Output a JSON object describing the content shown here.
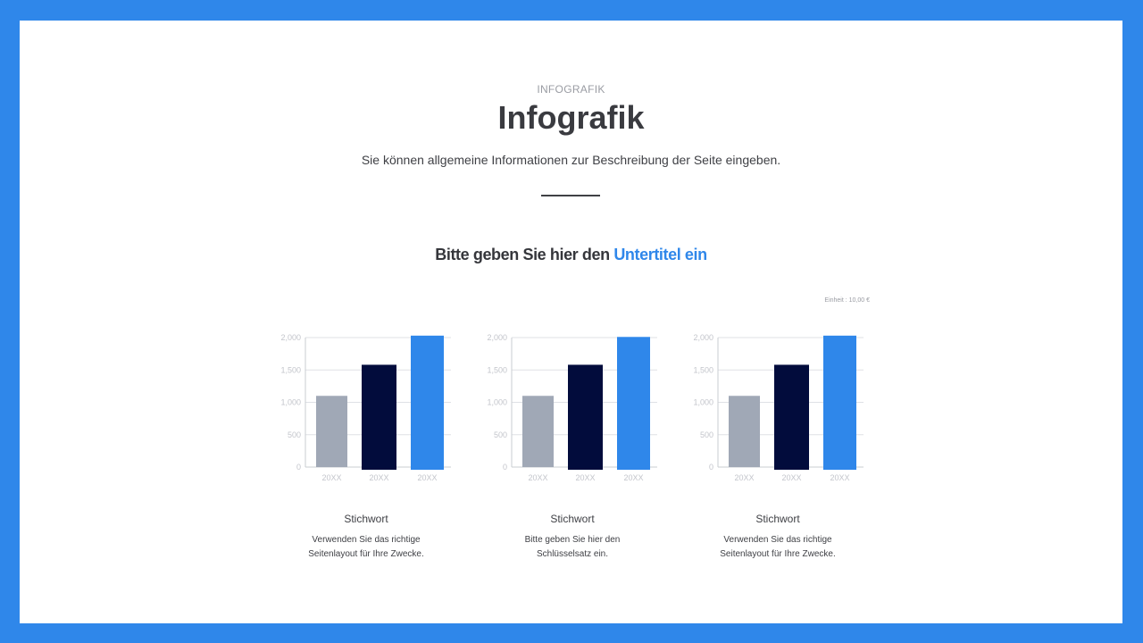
{
  "header": {
    "eyebrow": "INFOGRAFIK",
    "title": "Infografik",
    "description": "Sie können allgemeine Informationen zur Beschreibung der Seite eingeben.",
    "subtitle_prefix": "Bitte geben Sie hier den",
    "subtitle_accent": "Untertitel ein",
    "unit_note": "Einheit : 10,00 €"
  },
  "colors": {
    "background": "#2f87ea",
    "accent": "#2f87ea",
    "bar_gray": "#a0a8b6",
    "bar_navy": "#020c3c",
    "bar_blue": "#2f87ea"
  },
  "cards": [
    {
      "title": "Stichwort",
      "desc1": "Verwenden Sie das richtige",
      "desc2": "Seitenlayout für Ihre Zwecke."
    },
    {
      "title": "Stichwort",
      "desc1": "Bitte geben Sie hier den",
      "desc2": "Schlüsselsatz ein."
    },
    {
      "title": "Stichwort",
      "desc1": "Verwenden Sie das richtige",
      "desc2": "Seitenlayout für Ihre Zwecke."
    }
  ],
  "chart_data": [
    {
      "type": "bar",
      "categories": [
        "20XX",
        "20XX",
        "20XX"
      ],
      "values": [
        1100,
        1580,
        2030
      ],
      "y_ticks": [
        "0",
        "500",
        "1,000",
        "1,500",
        "2,000"
      ],
      "ylim": [
        0,
        2000
      ],
      "grid": true,
      "bar_colors": [
        "#a0a8b6",
        "#020c3c",
        "#2f87ea"
      ]
    },
    {
      "type": "bar",
      "categories": [
        "20XX",
        "20XX",
        "20XX"
      ],
      "values": [
        1100,
        1580,
        2010
      ],
      "y_ticks": [
        "0",
        "500",
        "1,000",
        "1,500",
        "2,000"
      ],
      "ylim": [
        0,
        2000
      ],
      "grid": true,
      "bar_colors": [
        "#a0a8b6",
        "#020c3c",
        "#2f87ea"
      ]
    },
    {
      "type": "bar",
      "categories": [
        "20XX",
        "20XX",
        "20XX"
      ],
      "values": [
        1100,
        1580,
        2030
      ],
      "y_ticks": [
        "0",
        "500",
        "1,000",
        "1,500",
        "2,000"
      ],
      "ylim": [
        0,
        2000
      ],
      "grid": true,
      "bar_colors": [
        "#a0a8b6",
        "#020c3c",
        "#2f87ea"
      ]
    }
  ]
}
